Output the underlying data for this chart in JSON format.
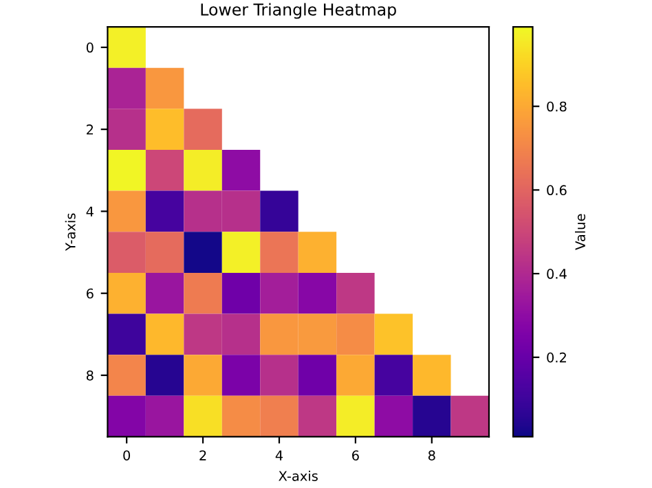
{
  "chart_data": {
    "type": "heatmap",
    "title": "Lower Triangle Heatmap",
    "xlabel": "X-axis",
    "ylabel": "Y-axis",
    "clabel": "Value",
    "categories": [
      "0",
      null,
      "2",
      null,
      "4",
      null,
      "6",
      null,
      "8",
      null
    ],
    "y_categories": [
      "0",
      null,
      "2",
      null,
      "4",
      null,
      "6",
      null,
      "8",
      null
    ],
    "cells": [
      [
        0.97,
        null,
        null,
        null,
        null,
        null,
        null,
        null,
        null,
        null
      ],
      [
        0.38,
        0.75,
        null,
        null,
        null,
        null,
        null,
        null,
        null,
        null
      ],
      [
        0.42,
        0.85,
        0.62,
        null,
        null,
        null,
        null,
        null,
        null,
        null
      ],
      [
        0.98,
        0.5,
        0.96,
        0.3,
        null,
        null,
        null,
        null,
        null,
        null
      ],
      [
        0.75,
        0.12,
        0.42,
        0.42,
        0.08,
        null,
        null,
        null,
        null,
        null
      ],
      [
        0.57,
        0.62,
        0.02,
        0.97,
        0.65,
        0.82,
        null,
        null,
        null,
        null
      ],
      [
        0.82,
        0.33,
        0.67,
        0.22,
        0.36,
        0.28,
        0.45,
        null,
        null,
        null
      ],
      [
        0.1,
        0.84,
        0.45,
        0.42,
        0.75,
        0.76,
        0.72,
        0.86,
        null,
        null
      ],
      [
        0.7,
        0.05,
        0.8,
        0.25,
        0.42,
        0.22,
        0.8,
        0.12,
        0.84,
        null
      ],
      [
        0.27,
        0.33,
        0.93,
        0.72,
        0.68,
        0.45,
        0.96,
        0.3,
        0.05,
        0.45
      ]
    ],
    "clim": [
      0.01,
      0.99
    ],
    "cticks": [
      0.2,
      0.4,
      0.6,
      0.8
    ]
  }
}
